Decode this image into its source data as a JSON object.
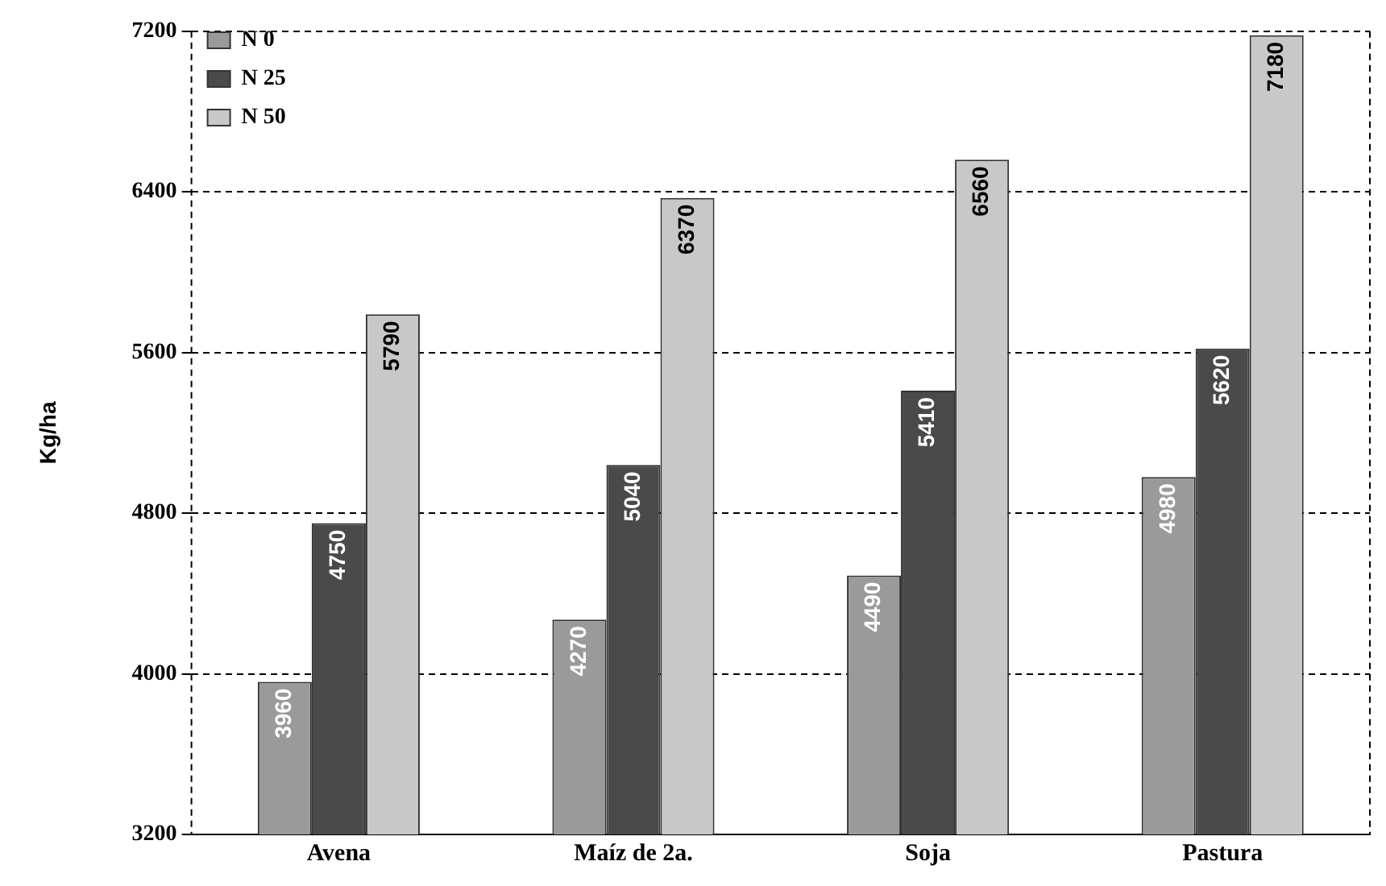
{
  "chart_data": {
    "type": "bar",
    "ylabel": "Kg/ha",
    "categories": [
      "Avena",
      "Maíz de 2a.",
      "Soja",
      "Pastura"
    ],
    "series": [
      {
        "name": "N 0",
        "color": "#9a9a9a",
        "values": [
          3960,
          4270,
          4490,
          4980
        ]
      },
      {
        "name": "N 25",
        "color": "#4a4a4a",
        "values": [
          4750,
          5040,
          5410,
          5620
        ]
      },
      {
        "name": "N 50",
        "color": "#c8c8c8",
        "values": [
          5790,
          6370,
          6560,
          7180
        ]
      }
    ],
    "ylim": [
      3200,
      7200
    ],
    "yticks": [
      3200,
      4000,
      4800,
      5600,
      6400,
      7200
    ],
    "grid": "y",
    "legend": "top left",
    "data_labels": true
  }
}
